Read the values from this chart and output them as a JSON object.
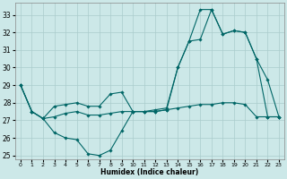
{
  "xlabel": "Humidex (Indice chaleur)",
  "bg_color": "#cce8e8",
  "grid_color": "#aacccc",
  "line_color": "#006666",
  "xlim": [
    -0.5,
    23.5
  ],
  "ylim": [
    24.8,
    33.7
  ],
  "yticks": [
    25,
    26,
    27,
    28,
    29,
    30,
    31,
    32,
    33
  ],
  "xticks": [
    0,
    1,
    2,
    3,
    4,
    5,
    6,
    7,
    8,
    9,
    10,
    11,
    12,
    13,
    14,
    15,
    16,
    17,
    18,
    19,
    20,
    21,
    22,
    23
  ],
  "line1_x": [
    0,
    1,
    2,
    3,
    4,
    5,
    6,
    7,
    8,
    9,
    10,
    11,
    12,
    13,
    14,
    15,
    16,
    17,
    18,
    19,
    20,
    21,
    22,
    23
  ],
  "line1_y": [
    29.0,
    27.5,
    27.1,
    26.3,
    26.0,
    25.9,
    25.1,
    25.0,
    25.3,
    26.4,
    27.5,
    27.5,
    27.5,
    27.6,
    30.0,
    31.5,
    33.3,
    33.3,
    31.9,
    32.1,
    32.0,
    30.5,
    29.3,
    27.2
  ],
  "line2_x": [
    0,
    1,
    2,
    3,
    4,
    5,
    6,
    7,
    8,
    9,
    10,
    11,
    12,
    13,
    14,
    15,
    16,
    17,
    18,
    19,
    20,
    21,
    22,
    23
  ],
  "line2_y": [
    29.0,
    27.5,
    27.1,
    27.8,
    27.9,
    28.0,
    27.8,
    27.8,
    28.5,
    28.6,
    27.5,
    27.5,
    27.6,
    27.7,
    30.0,
    31.5,
    31.6,
    33.3,
    31.9,
    32.1,
    32.0,
    30.5,
    27.2,
    27.2
  ],
  "line3_x": [
    0,
    1,
    2,
    3,
    4,
    5,
    6,
    7,
    8,
    9,
    10,
    11,
    12,
    13,
    14,
    15,
    16,
    17,
    18,
    19,
    20,
    21,
    22,
    23
  ],
  "line3_y": [
    29.0,
    27.5,
    27.1,
    27.2,
    27.4,
    27.5,
    27.3,
    27.3,
    27.4,
    27.5,
    27.5,
    27.5,
    27.5,
    27.6,
    27.7,
    27.8,
    27.9,
    27.9,
    28.0,
    28.0,
    27.9,
    27.2,
    27.2,
    27.2
  ]
}
